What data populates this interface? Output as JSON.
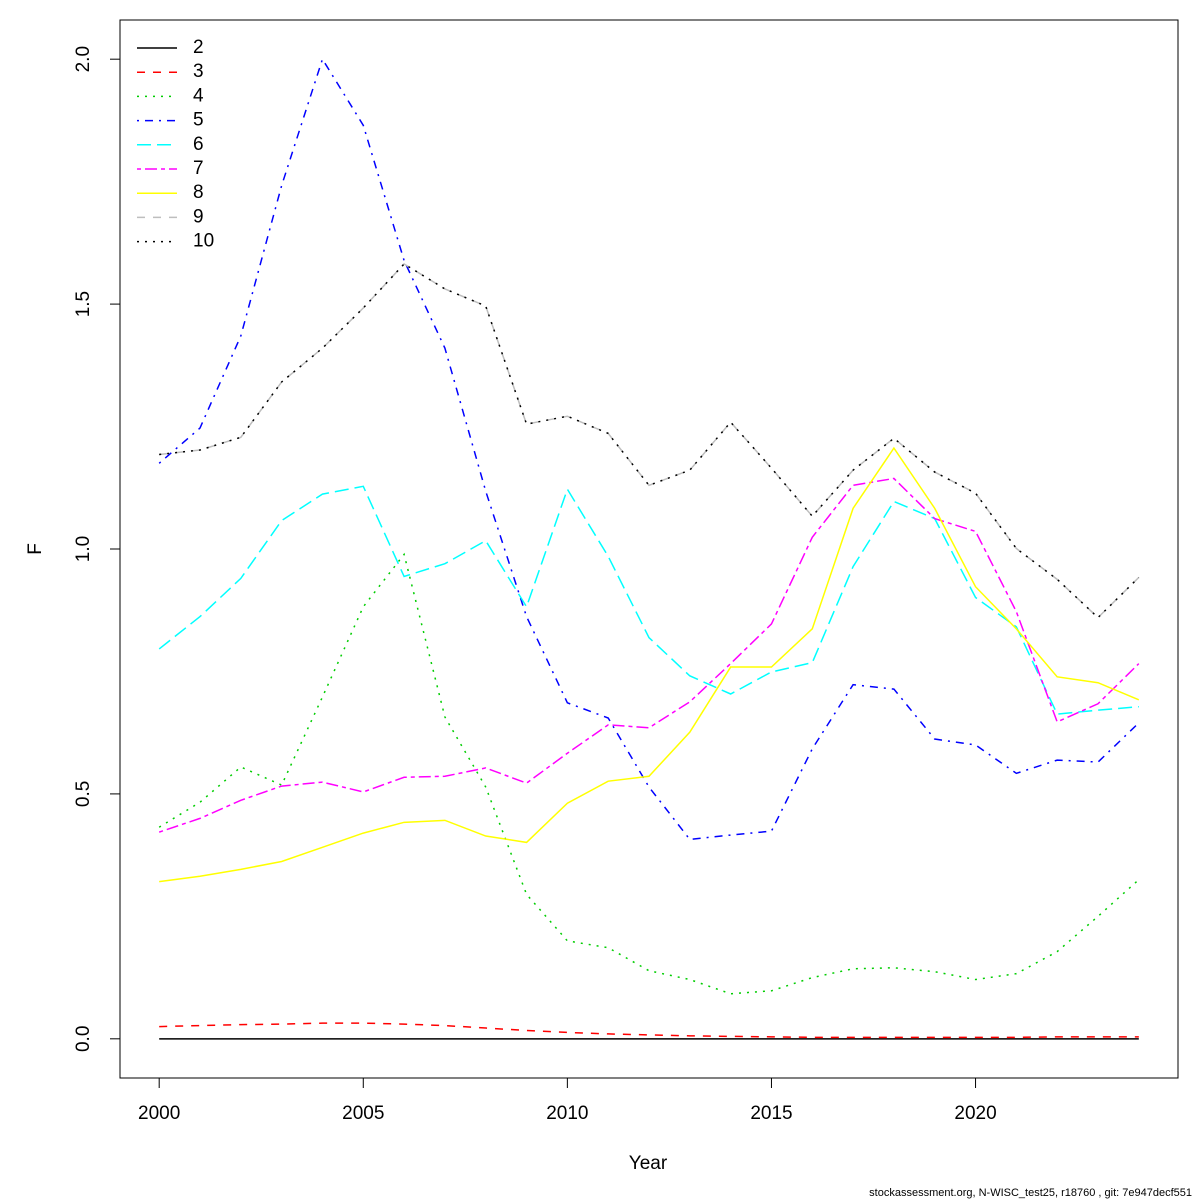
{
  "chart_data": {
    "type": "line",
    "xlabel": "Year",
    "ylabel": "F",
    "footnote": "stockassessment.org, N-WISC_test25, r18760 , git: 7e947decf551",
    "x": [
      2000,
      2001,
      2002,
      2003,
      2004,
      2005,
      2006,
      2007,
      2008,
      2009,
      2010,
      2011,
      2012,
      2013,
      2014,
      2015,
      2016,
      2017,
      2018,
      2019,
      2020,
      2021,
      2022,
      2023,
      2024
    ],
    "xlim": [
      1999.04,
      2024.96
    ],
    "xticks": [
      2000,
      2005,
      2010,
      2015,
      2020
    ],
    "ylim": [
      -0.08,
      2.08
    ],
    "yticks": [
      {
        "value": 0,
        "label": "0.0"
      },
      {
        "value": 0.5,
        "label": "0.5"
      },
      {
        "value": 1,
        "label": "1.0"
      },
      {
        "value": 1.5,
        "label": "1.5"
      },
      {
        "value": 2,
        "label": "2.0"
      }
    ],
    "legend": "top-left",
    "series": [
      {
        "name": "2",
        "color": "#000000",
        "dash": "solid",
        "values": [
          0,
          0,
          0,
          0,
          0,
          0,
          0,
          0,
          0,
          0,
          0,
          0,
          0,
          0,
          0,
          0,
          0,
          0,
          0,
          0,
          0,
          0,
          0,
          0,
          0
        ]
      },
      {
        "name": "3",
        "color": "#ff0000",
        "dash": "dashed",
        "values": [
          0.025,
          0.027,
          0.029,
          0.03,
          0.032,
          0.032,
          0.03,
          0.027,
          0.022,
          0.017,
          0.013,
          0.01,
          0.008,
          0.006,
          0.005,
          0.004,
          0.003,
          0.003,
          0.003,
          0.003,
          0.003,
          0.003,
          0.004,
          0.004,
          0.004
        ]
      },
      {
        "name": "4",
        "color": "#00cd00",
        "dash": "dotted",
        "values": [
          0.432,
          0.483,
          0.555,
          0.518,
          0.698,
          0.882,
          0.989,
          0.657,
          0.514,
          0.295,
          0.2,
          0.186,
          0.139,
          0.121,
          0.092,
          0.098,
          0.125,
          0.143,
          0.145,
          0.137,
          0.121,
          0.133,
          0.178,
          0.25,
          0.325
        ]
      },
      {
        "name": "5",
        "color": "#0000ff",
        "dash": "dotdash",
        "values": [
          1.175,
          1.247,
          1.435,
          1.742,
          2.0,
          1.865,
          1.589,
          1.41,
          1.118,
          0.862,
          0.686,
          0.655,
          0.514,
          0.407,
          0.416,
          0.424,
          0.592,
          0.723,
          0.714,
          0.612,
          0.6,
          0.542,
          0.569,
          0.565,
          0.645
        ]
      },
      {
        "name": "6",
        "color": "#00ffff",
        "dash": "longdash",
        "values": [
          0.796,
          0.862,
          0.94,
          1.058,
          1.112,
          1.128,
          0.944,
          0.97,
          1.017,
          0.882,
          1.122,
          0.985,
          0.819,
          0.741,
          0.704,
          0.749,
          0.768,
          0.964,
          1.097,
          1.062,
          0.901,
          0.841,
          0.663,
          0.671,
          0.678
        ]
      },
      {
        "name": "7",
        "color": "#ff00ff",
        "dash": "twodash",
        "values": [
          0.422,
          0.45,
          0.487,
          0.516,
          0.524,
          0.504,
          0.534,
          0.536,
          0.553,
          0.522,
          0.583,
          0.641,
          0.635,
          0.688,
          0.766,
          0.847,
          1.024,
          1.13,
          1.144,
          1.062,
          1.036,
          0.872,
          0.647,
          0.684,
          0.766
        ]
      },
      {
        "name": "8",
        "color": "#ffff00",
        "dash": "solid",
        "values": [
          0.321,
          0.332,
          0.346,
          0.362,
          0.391,
          0.42,
          0.442,
          0.446,
          0.414,
          0.401,
          0.481,
          0.526,
          0.536,
          0.626,
          0.759,
          0.759,
          0.837,
          1.083,
          1.206,
          1.083,
          0.923,
          0.837,
          0.739,
          0.727,
          0.692
        ]
      },
      {
        "name": "9",
        "color": "#bebebe",
        "dash": "dashed",
        "values": [
          1.193,
          1.202,
          1.228,
          1.341,
          1.41,
          1.492,
          1.582,
          1.531,
          1.496,
          1.255,
          1.271,
          1.236,
          1.13,
          1.161,
          1.259,
          1.165,
          1.067,
          1.161,
          1.226,
          1.157,
          1.114,
          1.001,
          0.938,
          0.86,
          0.942
        ]
      },
      {
        "name": "10",
        "color": "#000000",
        "dash": "dotted",
        "values": [
          1.193,
          1.202,
          1.228,
          1.341,
          1.41,
          1.492,
          1.582,
          1.531,
          1.496,
          1.255,
          1.271,
          1.236,
          1.13,
          1.161,
          1.259,
          1.165,
          1.067,
          1.161,
          1.226,
          1.157,
          1.114,
          1.001,
          0.938,
          0.86,
          0.942
        ]
      }
    ]
  }
}
